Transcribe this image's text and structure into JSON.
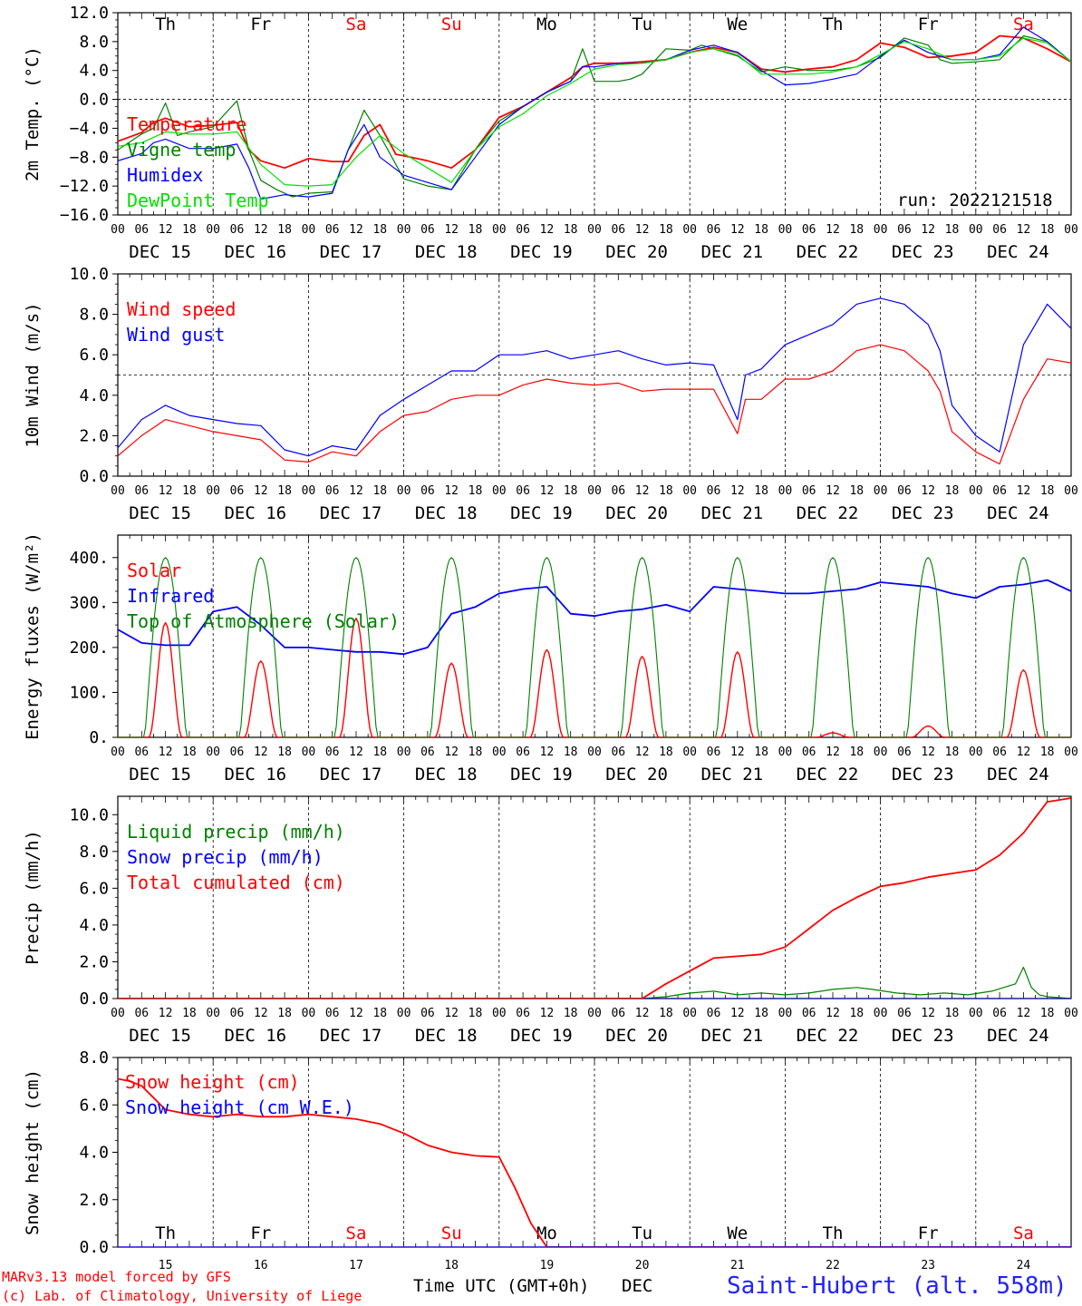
{
  "meta": {
    "run_label": "run: 2022121518",
    "credit_line1": "MARv3.13 model forced by GFS",
    "credit_line2": "(c) Lab. of Climatology, University of Liege",
    "x_axis_title": "Time UTC (GMT+0h)",
    "x_axis_month": "DEC",
    "station": "Saint-Hubert (alt. 558m)"
  },
  "days": [
    {
      "date": "DEC 15",
      "num": "15",
      "dow": "Th",
      "weekend": false
    },
    {
      "date": "DEC 16",
      "num": "16",
      "dow": "Fr",
      "weekend": false
    },
    {
      "date": "DEC 17",
      "num": "17",
      "dow": "Sa",
      "weekend": true
    },
    {
      "date": "DEC 18",
      "num": "18",
      "dow": "Su",
      "weekend": true
    },
    {
      "date": "DEC 19",
      "num": "19",
      "dow": "Mo",
      "weekend": false
    },
    {
      "date": "DEC 20",
      "num": "20",
      "dow": "Tu",
      "weekend": false
    },
    {
      "date": "DEC 21",
      "num": "21",
      "dow": "We",
      "weekend": false
    },
    {
      "date": "DEC 22",
      "num": "22",
      "dow": "Th",
      "weekend": false
    },
    {
      "date": "DEC 23",
      "num": "23",
      "dow": "Fr",
      "weekend": false
    },
    {
      "date": "DEC 24",
      "num": "24",
      "dow": "Sa",
      "weekend": true
    }
  ],
  "hour_ticks": [
    "00",
    "06",
    "12",
    "18"
  ],
  "colors": {
    "red": "#ff0000",
    "green": "#008000",
    "blue": "#0000ff",
    "lightgreen": "#00e000",
    "purple": "#800080",
    "weekend": "#ff0000"
  },
  "chart_data": [
    {
      "type": "line",
      "id": "temp",
      "ylabel": "2m Temp. (°C)",
      "ylim": [
        -16,
        12
      ],
      "yticks": [
        "12.0",
        "8.0",
        "4.0",
        "0.0",
        "−4.0",
        "−8.0",
        "−12.0",
        "−16.0"
      ],
      "ytick_values": [
        12,
        8,
        4,
        0,
        -4,
        -8,
        -12,
        -16
      ],
      "refline": 0,
      "x_unit": "hours since DEC 15 00 UTC",
      "series": [
        {
          "name": "Temperature",
          "color": "#ff0000",
          "x": [
            0,
            6,
            9,
            12,
            18,
            24,
            30,
            33,
            36,
            42,
            48,
            54,
            58,
            62,
            66,
            70,
            72,
            78,
            84,
            90,
            96,
            102,
            108,
            114,
            117,
            120,
            126,
            132,
            138,
            144,
            150,
            156,
            162,
            168,
            174,
            180,
            186,
            192,
            198,
            204,
            210,
            216,
            222,
            228,
            234,
            240
          ],
          "y": [
            -5.8,
            -4.6,
            -3.2,
            -2.6,
            -3.8,
            -3.6,
            -3.2,
            -7,
            -8.5,
            -9.5,
            -8.2,
            -8.6,
            -8.6,
            -5,
            -3.5,
            -7.6,
            -7.8,
            -8.5,
            -9.5,
            -7,
            -2.5,
            -1,
            1,
            3,
            4.5,
            5,
            5,
            5.2,
            5.5,
            6.5,
            7.2,
            6.5,
            4.2,
            3.8,
            4.2,
            4.5,
            5.5,
            7.8,
            7.2,
            5.8,
            6,
            6.5,
            8.8,
            8.5,
            7,
            5.2
          ]
        },
        {
          "name": "Vigne temp",
          "color": "#008000",
          "x": [
            0,
            6,
            9,
            12,
            15,
            18,
            24,
            30,
            33,
            36,
            40,
            44,
            48,
            54,
            58,
            62,
            66,
            72,
            78,
            84,
            90,
            96,
            102,
            108,
            114,
            117,
            120,
            126,
            129,
            132,
            138,
            144,
            147,
            150,
            156,
            162,
            168,
            174,
            180,
            186,
            192,
            198,
            204,
            207,
            210,
            216,
            222,
            228,
            234,
            240
          ],
          "y": [
            -7,
            -4.8,
            -4,
            -0.5,
            -5,
            -4.5,
            -3.8,
            -0.2,
            -7,
            -11.2,
            -12.5,
            -13.5,
            -13,
            -12.8,
            -7,
            -1.5,
            -5,
            -11,
            -12,
            -12.5,
            -7,
            -3,
            -1,
            1,
            2.5,
            7,
            2.5,
            2.5,
            2.8,
            3.5,
            7,
            6.8,
            7.5,
            7,
            6,
            3.8,
            4.5,
            4,
            4,
            4.5,
            5.8,
            8.5,
            7.5,
            5.5,
            5,
            5.2,
            5.5,
            8.8,
            8,
            5.2
          ]
        },
        {
          "name": "Humidex",
          "color": "#0000ff",
          "x": [
            0,
            6,
            9,
            12,
            18,
            24,
            30,
            33,
            36,
            42,
            48,
            54,
            58,
            62,
            66,
            72,
            78,
            84,
            90,
            96,
            102,
            108,
            114,
            117,
            120,
            126,
            132,
            138,
            144,
            150,
            156,
            162,
            168,
            174,
            180,
            186,
            192,
            198,
            204,
            210,
            216,
            222,
            228,
            234,
            240
          ],
          "y": [
            -8.5,
            -7.5,
            -6,
            -5.5,
            -6.8,
            -6.8,
            -6.2,
            -9.5,
            -13.8,
            -13.2,
            -13.5,
            -13,
            -7,
            -3.5,
            -8,
            -10.5,
            -11.5,
            -12.5,
            -8,
            -3.5,
            -1,
            1,
            2.5,
            4.5,
            4.5,
            5,
            5,
            5.5,
            6.8,
            7.5,
            6.5,
            4,
            2,
            2.2,
            2.8,
            3.5,
            6,
            8.2,
            6.5,
            5.5,
            5.5,
            6.2,
            10,
            8,
            5.2
          ]
        },
        {
          "name": "DewPoint Temp",
          "color": "#00e000",
          "x": [
            0,
            6,
            12,
            18,
            24,
            30,
            36,
            42,
            48,
            54,
            60,
            66,
            72,
            78,
            84,
            90,
            96,
            102,
            108,
            114,
            120,
            126,
            132,
            138,
            144,
            150,
            156,
            162,
            168,
            174,
            180,
            186,
            192,
            198,
            204,
            210,
            216,
            222,
            228,
            234,
            240
          ],
          "y": [
            -6.5,
            -6,
            -4.5,
            -4.8,
            -4.8,
            -4.5,
            -9,
            -11.8,
            -12,
            -11.8,
            -8,
            -5,
            -7.5,
            -9.5,
            -11.5,
            -7,
            -3.8,
            -2,
            0.5,
            2.2,
            4.2,
            4.8,
            5,
            5.5,
            6.5,
            7,
            6.2,
            3.5,
            3.5,
            3.5,
            3.8,
            4.5,
            6.2,
            8,
            7,
            5.5,
            5.5,
            6,
            8.5,
            7.8,
            5.2
          ]
        }
      ]
    },
    {
      "type": "line",
      "id": "wind",
      "ylabel": "10m Wind (m/s)",
      "ylim": [
        0,
        10
      ],
      "yticks": [
        "10.0",
        "8.0",
        "6.0",
        "4.0",
        "2.0",
        "0.0"
      ],
      "ytick_values": [
        10,
        8,
        6,
        4,
        2,
        0
      ],
      "refline": 5,
      "series": [
        {
          "name": "Wind speed",
          "color": "#ff0000",
          "x": [
            0,
            6,
            12,
            18,
            24,
            30,
            36,
            42,
            48,
            54,
            60,
            66,
            72,
            78,
            84,
            90,
            96,
            102,
            108,
            114,
            120,
            126,
            132,
            138,
            144,
            150,
            156,
            158,
            162,
            168,
            174,
            180,
            186,
            192,
            198,
            204,
            207,
            210,
            216,
            222,
            228,
            234,
            240
          ],
          "y": [
            1,
            2,
            2.8,
            2.5,
            2.2,
            2,
            1.8,
            0.8,
            0.7,
            1.2,
            1,
            2.2,
            3,
            3.2,
            3.8,
            4,
            4,
            4.5,
            4.8,
            4.6,
            4.5,
            4.6,
            4.2,
            4.3,
            4.3,
            4.3,
            2.1,
            3.8,
            3.8,
            4.8,
            4.8,
            5.2,
            6.2,
            6.5,
            6.2,
            5.2,
            4.2,
            2.2,
            1.2,
            0.6,
            3.8,
            5.8,
            5.6
          ]
        },
        {
          "name": "Wind gust",
          "color": "#0000ff",
          "x": [
            0,
            6,
            12,
            18,
            24,
            30,
            36,
            42,
            48,
            54,
            60,
            66,
            72,
            78,
            84,
            90,
            96,
            102,
            108,
            114,
            120,
            126,
            132,
            138,
            144,
            150,
            156,
            158,
            162,
            168,
            174,
            180,
            186,
            192,
            198,
            204,
            207,
            210,
            216,
            222,
            228,
            234,
            240
          ],
          "y": [
            1.4,
            2.8,
            3.5,
            3,
            2.8,
            2.6,
            2.5,
            1.3,
            1,
            1.5,
            1.3,
            3,
            3.8,
            4.5,
            5.2,
            5.2,
            6,
            6,
            6.2,
            5.8,
            6,
            6.2,
            5.8,
            5.5,
            5.6,
            5.5,
            2.8,
            5,
            5.3,
            6.5,
            7,
            7.5,
            8.5,
            8.8,
            8.5,
            7.5,
            6.2,
            3.5,
            2,
            1.2,
            6.5,
            8.5,
            7.3
          ]
        }
      ]
    },
    {
      "type": "line",
      "id": "energy",
      "ylabel": "Energy fluxes (W/m²)",
      "ylim": [
        0,
        450
      ],
      "yticks": [
        "400.",
        "300.",
        "200.",
        "100.",
        "0."
      ],
      "ytick_values": [
        400,
        300,
        200,
        100,
        0
      ],
      "series": [
        {
          "name": "Solar",
          "color": "#ff0000",
          "peaks": [
            255,
            170,
            265,
            165,
            195,
            180,
            190,
            10,
            25,
            150
          ]
        },
        {
          "name": "Infrared",
          "color": "#0000ff",
          "x": [
            0,
            6,
            12,
            18,
            24,
            30,
            36,
            42,
            48,
            54,
            60,
            66,
            72,
            78,
            84,
            90,
            96,
            102,
            108,
            114,
            120,
            126,
            132,
            138,
            144,
            150,
            156,
            162,
            168,
            174,
            180,
            186,
            192,
            198,
            204,
            210,
            216,
            222,
            228,
            234,
            240
          ],
          "y": [
            240,
            210,
            205,
            205,
            280,
            290,
            250,
            200,
            200,
            195,
            190,
            190,
            185,
            200,
            275,
            290,
            320,
            330,
            335,
            275,
            270,
            280,
            285,
            295,
            280,
            335,
            330,
            325,
            320,
            320,
            325,
            330,
            345,
            340,
            335,
            320,
            310,
            335,
            340,
            350,
            325
          ]
        },
        {
          "name": "Top of Atmosphere (Solar)",
          "color": "#008000",
          "peak": 400
        }
      ]
    },
    {
      "type": "line",
      "id": "precip",
      "ylabel": "Precip (mm/h)",
      "ylim": [
        0,
        11
      ],
      "yticks": [
        "10.0",
        "8.0",
        "6.0",
        "4.0",
        "2.0",
        "0.0"
      ],
      "ytick_values": [
        10,
        8,
        6,
        4,
        2,
        0
      ],
      "series": [
        {
          "name": "Liquid precip (mm/h)",
          "color": "#008000",
          "x": [
            0,
            132,
            138,
            144,
            150,
            156,
            162,
            168,
            174,
            180,
            186,
            190,
            196,
            202,
            208,
            214,
            220,
            226,
            228,
            230,
            232,
            234,
            240
          ],
          "y": [
            0,
            0,
            0.1,
            0.3,
            0.4,
            0.2,
            0.3,
            0.2,
            0.3,
            0.5,
            0.6,
            0.5,
            0.3,
            0.2,
            0.3,
            0.2,
            0.4,
            0.8,
            1.7,
            0.6,
            0.2,
            0.1,
            0
          ]
        },
        {
          "name": "Snow precip (mm/h)",
          "color": "#0000ff",
          "x": [
            0,
            240
          ],
          "y": [
            0,
            0
          ]
        },
        {
          "name": "Total cumulated (cm)",
          "color": "#ff0000",
          "x": [
            0,
            96,
            132,
            138,
            144,
            150,
            156,
            162,
            168,
            174,
            180,
            186,
            192,
            198,
            204,
            210,
            216,
            222,
            228,
            234,
            240
          ],
          "y": [
            0,
            0,
            0,
            0.8,
            1.5,
            2.2,
            2.3,
            2.4,
            2.8,
            3.8,
            4.8,
            5.5,
            6.1,
            6.3,
            6.6,
            6.8,
            7.0,
            7.8,
            9.0,
            10.7,
            10.9
          ]
        }
      ]
    },
    {
      "type": "line",
      "id": "snow",
      "ylabel": "Snow height (cm)",
      "ylim": [
        0,
        8
      ],
      "yticks": [
        "8.0",
        "6.0",
        "4.0",
        "2.0",
        "0.0"
      ],
      "ytick_values": [
        8,
        6,
        4,
        2,
        0
      ],
      "series": [
        {
          "name": "Snow height (cm)",
          "color": "#ff0000",
          "x": [
            0,
            3,
            6,
            12,
            18,
            24,
            30,
            36,
            42,
            48,
            54,
            60,
            66,
            72,
            78,
            84,
            90,
            96,
            100,
            104,
            108,
            240
          ],
          "y": [
            7.1,
            7.0,
            6.8,
            5.8,
            5.6,
            5.5,
            5.6,
            5.5,
            5.5,
            5.6,
            5.5,
            5.4,
            5.2,
            4.8,
            4.3,
            4.0,
            3.85,
            3.8,
            2.5,
            1.0,
            0,
            0
          ]
        },
        {
          "name": "Snow height (cm W.E.)",
          "color": "#0000ff",
          "x": [
            0,
            240
          ],
          "y": [
            0,
            0
          ]
        }
      ]
    }
  ]
}
